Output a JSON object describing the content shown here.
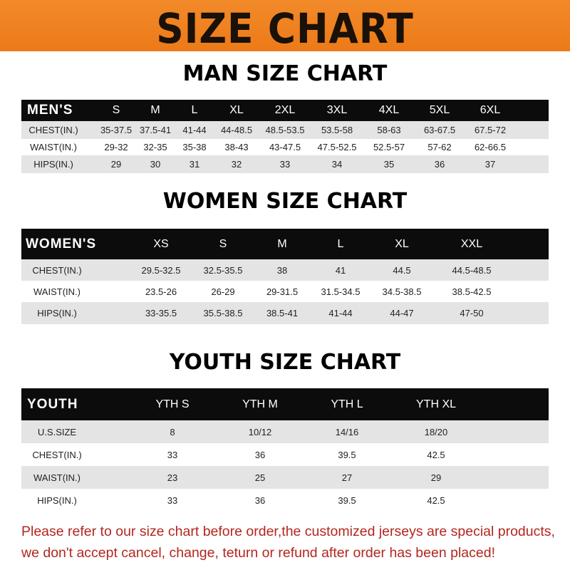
{
  "title": "SIZE CHART",
  "colors": {
    "banner": "#ef801f",
    "header_row": "#0c0c0c",
    "stripe": "#e4e4e4",
    "note": "#b3261e"
  },
  "men": {
    "heading": "MAN SIZE CHART",
    "columns": [
      "MEN'S",
      "S",
      "M",
      "L",
      "XL",
      "2XL",
      "3XL",
      "4XL",
      "5XL",
      "6XL"
    ],
    "rows": [
      [
        "CHEST(IN.)",
        "35-37.5",
        "37.5-41",
        "41-44",
        "44-48.5",
        "48.5-53.5",
        "53.5-58",
        "58-63",
        "63-67.5",
        "67.5-72"
      ],
      [
        "WAIST(IN.)",
        "29-32",
        "32-35",
        "35-38",
        "38-43",
        "43-47.5",
        "47.5-52.5",
        "52.5-57",
        "57-62",
        "62-66.5"
      ],
      [
        "HIPS(IN.)",
        "29",
        "30",
        "31",
        "32",
        "33",
        "34",
        "35",
        "36",
        "37"
      ]
    ]
  },
  "women": {
    "heading": "WOMEN SIZE CHART",
    "columns": [
      "WOMEN'S",
      "XS",
      "S",
      "M",
      "L",
      "XL",
      "XXL"
    ],
    "rows": [
      [
        "CHEST(IN.)",
        "29.5-32.5",
        "32.5-35.5",
        "38",
        "41",
        "44.5",
        "44.5-48.5"
      ],
      [
        "WAIST(IN.)",
        "23.5-26",
        "26-29",
        "29-31.5",
        "31.5-34.5",
        "34.5-38.5",
        "38.5-42.5"
      ],
      [
        "HIPS(IN.)",
        "33-35.5",
        "35.5-38.5",
        "38.5-41",
        "41-44",
        "44-47",
        "47-50"
      ]
    ]
  },
  "youth": {
    "heading": "YOUTH SIZE CHART",
    "columns": [
      "YOUTH",
      "YTH S",
      "YTH M",
      "YTH L",
      "YTH XL"
    ],
    "rows": [
      [
        "U.S.SIZE",
        "8",
        "10/12",
        "14/16",
        "18/20"
      ],
      [
        "CHEST(IN.)",
        "33",
        "36",
        "39.5",
        "42.5"
      ],
      [
        "WAIST(IN.)",
        "23",
        "25",
        "27",
        "29"
      ],
      [
        "HIPS(IN.)",
        "33",
        "36",
        "39.5",
        "42.5"
      ]
    ]
  },
  "note": {
    "line1": "Please refer to our size chart before order,the customized jerseys are special products,",
    "line2": "we don't accept cancel, change, teturn or refund after order has been placed!"
  }
}
